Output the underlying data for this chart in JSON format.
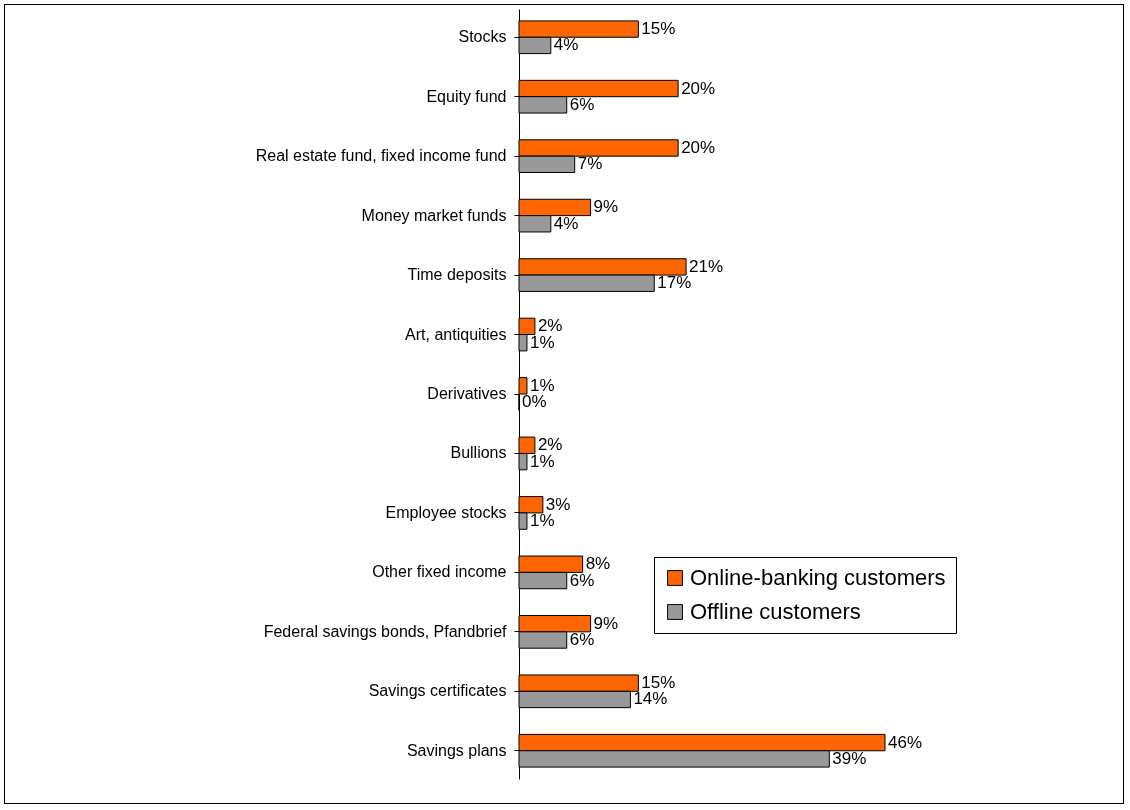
{
  "chart_data": {
    "type": "bar",
    "orientation": "horizontal",
    "categories": [
      "Stocks",
      "Equity fund",
      "Real estate fund, fixed income fund",
      "Money market funds",
      "Time deposits",
      "Art, antiquities",
      "Derivatives",
      "Bullions",
      "Employee stocks",
      "Other fixed income",
      "Federal savings bonds, Pfandbrief",
      "Savings certificates",
      "Savings plans"
    ],
    "series": [
      {
        "name": "Online-banking customers",
        "color": "#ff6600",
        "values": [
          15,
          20,
          20,
          9,
          21,
          2,
          1,
          2,
          3,
          8,
          9,
          15,
          46
        ],
        "value_labels": [
          "15%",
          "20%",
          "20%",
          "9%",
          "21%",
          "2%",
          "1%",
          "2%",
          "3%",
          "8%",
          "9%",
          "15%",
          "46%"
        ]
      },
      {
        "name": "Offline customers",
        "color": "#999999",
        "values": [
          4,
          6,
          7,
          4,
          17,
          1,
          0,
          1,
          1,
          6,
          6,
          14,
          39
        ],
        "value_labels": [
          "4%",
          "6%",
          "7%",
          "4%",
          "17%",
          "1%",
          "0%",
          "1%",
          "1%",
          "6%",
          "6%",
          "14%",
          "39%"
        ]
      }
    ],
    "legend": "right",
    "tick_labels": "y"
  }
}
